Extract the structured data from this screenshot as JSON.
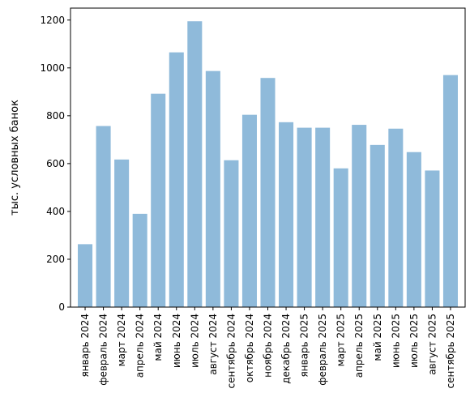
{
  "chart_data": {
    "type": "bar",
    "title": "",
    "xlabel": "",
    "ylabel": "тыс. условных банок",
    "ylim": [
      0,
      1250
    ],
    "yticks": [
      0,
      200,
      400,
      600,
      800,
      1000,
      1200
    ],
    "grid": false,
    "bar_color": "#8fbada",
    "categories": [
      "январь 2024",
      "февраль 2024",
      "март 2024",
      "апрель 2024",
      "май 2024",
      "июнь 2024",
      "июль 2024",
      "август 2024",
      "сентябрь 2024",
      "октябрь 2024",
      "ноябрь 2024",
      "декабрь 2024",
      "январь 2025",
      "февраль 2025",
      "март 2025",
      "апрель 2025",
      "май 2025",
      "июнь 2025",
      "июль 2025",
      "август 2025",
      "сентябрь 2025"
    ],
    "values": [
      263,
      757,
      617,
      390,
      892,
      1065,
      1195,
      987,
      614,
      804,
      958,
      773,
      750,
      750,
      580,
      762,
      678,
      746,
      648,
      571,
      970
    ]
  }
}
